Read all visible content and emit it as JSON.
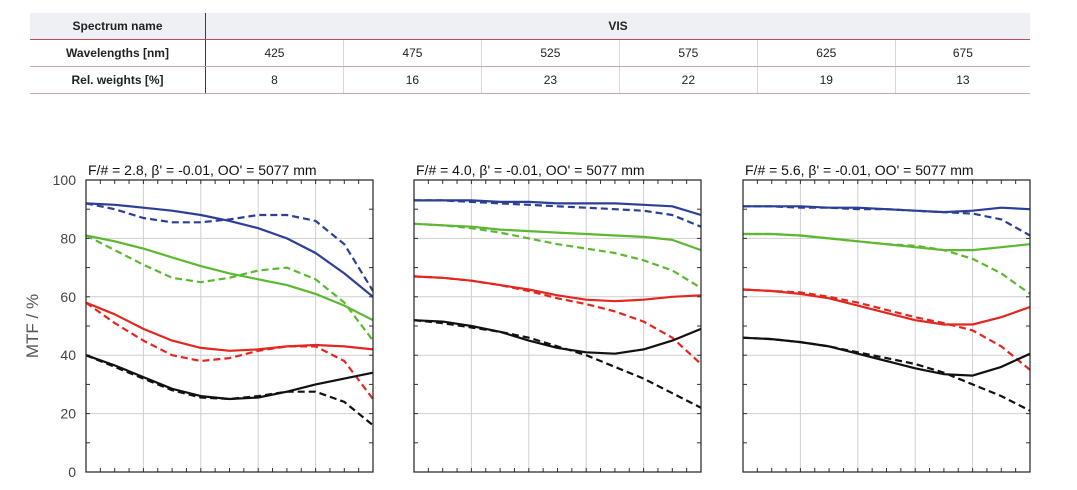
{
  "table": {
    "header_label": "Spectrum name",
    "header_value": "VIS",
    "rows": [
      {
        "label": "Wavelengths [nm]",
        "values": [
          "425",
          "475",
          "525",
          "575",
          "625",
          "675"
        ]
      },
      {
        "label": "Rel. weights [%]",
        "values": [
          "8",
          "16",
          "23",
          "22",
          "19",
          "13"
        ]
      }
    ]
  },
  "colors": {
    "blue": "#2b3f96",
    "green": "#5cb832",
    "red": "#e3261f",
    "black": "#111111",
    "grid": "#cfcfcf"
  },
  "chart_data": [
    {
      "type": "line",
      "title": "F/# = 2.8, β' = -0.01, OO' = 5077 mm",
      "ylabel": "MTF / %",
      "ylim": [
        0,
        100
      ],
      "xlim": [
        0,
        1
      ],
      "yticks": [
        "0",
        "20",
        "40",
        "60",
        "80",
        "100"
      ],
      "grid": true,
      "series": [
        {
          "color": "blue",
          "dash": false,
          "x": [
            0,
            0.1,
            0.2,
            0.3,
            0.4,
            0.5,
            0.6,
            0.7,
            0.8,
            0.9,
            1.0
          ],
          "y": [
            92,
            91.5,
            90.5,
            89.5,
            88,
            86,
            83.5,
            80,
            75,
            68,
            60
          ]
        },
        {
          "color": "blue",
          "dash": true,
          "x": [
            0,
            0.1,
            0.2,
            0.3,
            0.4,
            0.5,
            0.6,
            0.7,
            0.8,
            0.9,
            1.0
          ],
          "y": [
            92,
            90,
            87,
            85.5,
            85.5,
            86.5,
            88,
            88,
            86,
            78,
            62
          ]
        },
        {
          "color": "green",
          "dash": false,
          "x": [
            0,
            0.1,
            0.2,
            0.3,
            0.4,
            0.5,
            0.6,
            0.7,
            0.8,
            0.9,
            1.0
          ],
          "y": [
            81,
            79,
            76.5,
            73.5,
            70.5,
            68,
            66,
            64,
            61,
            57,
            52
          ]
        },
        {
          "color": "green",
          "dash": true,
          "x": [
            0,
            0.1,
            0.2,
            0.3,
            0.4,
            0.5,
            0.6,
            0.7,
            0.8,
            0.9,
            1.0
          ],
          "y": [
            81,
            76,
            71,
            66.5,
            65,
            66.5,
            69,
            70,
            66,
            58,
            45
          ]
        },
        {
          "color": "red",
          "dash": false,
          "x": [
            0,
            0.1,
            0.2,
            0.3,
            0.4,
            0.5,
            0.6,
            0.7,
            0.8,
            0.9,
            1.0
          ],
          "y": [
            58,
            54,
            49,
            45,
            42.5,
            41.5,
            42,
            43,
            43.5,
            43,
            42
          ]
        },
        {
          "color": "red",
          "dash": true,
          "x": [
            0,
            0.1,
            0.2,
            0.3,
            0.4,
            0.5,
            0.6,
            0.7,
            0.8,
            0.9,
            1.0
          ],
          "y": [
            58,
            51,
            45,
            40,
            38,
            39,
            41.5,
            43,
            43,
            38,
            25
          ]
        },
        {
          "color": "black",
          "dash": false,
          "x": [
            0,
            0.1,
            0.2,
            0.3,
            0.4,
            0.5,
            0.6,
            0.7,
            0.8,
            0.9,
            1.0
          ],
          "y": [
            40,
            36.5,
            32.5,
            28.5,
            26,
            25,
            25.5,
            27.5,
            30,
            32,
            34
          ]
        },
        {
          "color": "black",
          "dash": true,
          "x": [
            0,
            0.1,
            0.2,
            0.3,
            0.4,
            0.5,
            0.6,
            0.7,
            0.8,
            0.9,
            1.0
          ],
          "y": [
            40,
            36,
            32,
            28,
            25.5,
            25,
            26,
            27.5,
            27.5,
            24,
            16
          ]
        }
      ]
    },
    {
      "type": "line",
      "title": "F/# = 4.0, β' = -0.01, OO' = 5077 mm",
      "ylim": [
        0,
        100
      ],
      "xlim": [
        0,
        1
      ],
      "grid": true,
      "series": [
        {
          "color": "blue",
          "dash": false,
          "x": [
            0,
            0.1,
            0.2,
            0.3,
            0.4,
            0.5,
            0.6,
            0.7,
            0.8,
            0.9,
            1.0
          ],
          "y": [
            93,
            93,
            93,
            92.5,
            92.5,
            92,
            92,
            92,
            91.5,
            91,
            88
          ]
        },
        {
          "color": "blue",
          "dash": true,
          "x": [
            0,
            0.1,
            0.2,
            0.3,
            0.4,
            0.5,
            0.6,
            0.7,
            0.8,
            0.9,
            1.0
          ],
          "y": [
            93,
            93,
            92.5,
            92,
            91.5,
            91,
            90.5,
            90,
            89.5,
            88,
            84
          ]
        },
        {
          "color": "green",
          "dash": false,
          "x": [
            0,
            0.1,
            0.2,
            0.3,
            0.4,
            0.5,
            0.6,
            0.7,
            0.8,
            0.9,
            1.0
          ],
          "y": [
            85,
            84.5,
            84,
            83,
            82.5,
            82,
            81.5,
            81,
            80.5,
            79.5,
            76
          ]
        },
        {
          "color": "green",
          "dash": true,
          "x": [
            0,
            0.1,
            0.2,
            0.3,
            0.4,
            0.5,
            0.6,
            0.7,
            0.8,
            0.9,
            1.0
          ],
          "y": [
            85,
            84.5,
            83.5,
            82,
            80,
            78,
            76.5,
            75,
            72.5,
            69,
            63
          ]
        },
        {
          "color": "red",
          "dash": false,
          "x": [
            0,
            0.1,
            0.2,
            0.3,
            0.4,
            0.5,
            0.6,
            0.7,
            0.8,
            0.9,
            1.0
          ],
          "y": [
            67,
            66.5,
            65.5,
            64,
            62.5,
            60.5,
            59,
            58.5,
            59,
            60,
            60.5
          ]
        },
        {
          "color": "red",
          "dash": true,
          "x": [
            0,
            0.1,
            0.2,
            0.3,
            0.4,
            0.5,
            0.6,
            0.7,
            0.8,
            0.9,
            1.0
          ],
          "y": [
            67,
            66.5,
            65.5,
            64,
            62,
            59.5,
            57.5,
            55,
            51.5,
            46,
            37
          ]
        },
        {
          "color": "black",
          "dash": false,
          "x": [
            0,
            0.1,
            0.2,
            0.3,
            0.4,
            0.5,
            0.6,
            0.7,
            0.8,
            0.9,
            1.0
          ],
          "y": [
            52,
            51.5,
            50,
            48,
            45,
            42.5,
            41,
            40.5,
            42,
            45,
            49
          ]
        },
        {
          "color": "black",
          "dash": true,
          "x": [
            0,
            0.1,
            0.2,
            0.3,
            0.4,
            0.5,
            0.6,
            0.7,
            0.8,
            0.9,
            1.0
          ],
          "y": [
            52,
            51,
            49.5,
            48,
            46,
            43,
            40,
            36,
            32,
            27,
            22
          ]
        }
      ]
    },
    {
      "type": "line",
      "title": "F/# = 5.6, β' = -0.01, OO' = 5077 mm",
      "ylim": [
        0,
        100
      ],
      "xlim": [
        0,
        1
      ],
      "grid": true,
      "series": [
        {
          "color": "blue",
          "dash": false,
          "x": [
            0,
            0.1,
            0.2,
            0.3,
            0.4,
            0.5,
            0.6,
            0.7,
            0.8,
            0.9,
            1.0
          ],
          "y": [
            91,
            91,
            91,
            90.5,
            90.5,
            90,
            89.5,
            89,
            89.5,
            90.5,
            90
          ]
        },
        {
          "color": "blue",
          "dash": true,
          "x": [
            0,
            0.1,
            0.2,
            0.3,
            0.4,
            0.5,
            0.6,
            0.7,
            0.8,
            0.9,
            1.0
          ],
          "y": [
            91,
            91,
            90.5,
            90.5,
            90,
            90,
            89.5,
            89,
            88.5,
            86.5,
            81
          ]
        },
        {
          "color": "green",
          "dash": false,
          "x": [
            0,
            0.1,
            0.2,
            0.3,
            0.4,
            0.5,
            0.6,
            0.7,
            0.8,
            0.9,
            1.0
          ],
          "y": [
            81.5,
            81.5,
            81,
            80,
            79,
            78,
            77,
            76,
            76,
            77,
            78
          ]
        },
        {
          "color": "green",
          "dash": true,
          "x": [
            0,
            0.1,
            0.2,
            0.3,
            0.4,
            0.5,
            0.6,
            0.7,
            0.8,
            0.9,
            1.0
          ],
          "y": [
            81.5,
            81.5,
            81,
            80,
            79,
            78,
            77.5,
            76,
            73,
            68,
            61
          ]
        },
        {
          "color": "red",
          "dash": false,
          "x": [
            0,
            0.1,
            0.2,
            0.3,
            0.4,
            0.5,
            0.6,
            0.7,
            0.8,
            0.9,
            1.0
          ],
          "y": [
            62.5,
            62,
            61,
            59.5,
            57,
            54.5,
            52,
            50.5,
            50.5,
            53,
            56.5
          ]
        },
        {
          "color": "red",
          "dash": true,
          "x": [
            0,
            0.1,
            0.2,
            0.3,
            0.4,
            0.5,
            0.6,
            0.7,
            0.8,
            0.9,
            1.0
          ],
          "y": [
            62.5,
            62,
            61.5,
            60,
            58,
            55.5,
            53,
            51,
            48.5,
            43,
            35
          ]
        },
        {
          "color": "black",
          "dash": false,
          "x": [
            0,
            0.1,
            0.2,
            0.3,
            0.4,
            0.5,
            0.6,
            0.7,
            0.8,
            0.9,
            1.0
          ],
          "y": [
            46,
            45.5,
            44.5,
            43,
            40.5,
            38,
            35.5,
            33.5,
            33,
            36,
            40.5
          ]
        },
        {
          "color": "black",
          "dash": true,
          "x": [
            0,
            0.1,
            0.2,
            0.3,
            0.4,
            0.5,
            0.6,
            0.7,
            0.8,
            0.9,
            1.0
          ],
          "y": [
            46,
            45.5,
            44.5,
            43,
            41,
            39,
            37,
            34,
            30,
            26,
            21
          ]
        }
      ]
    }
  ]
}
